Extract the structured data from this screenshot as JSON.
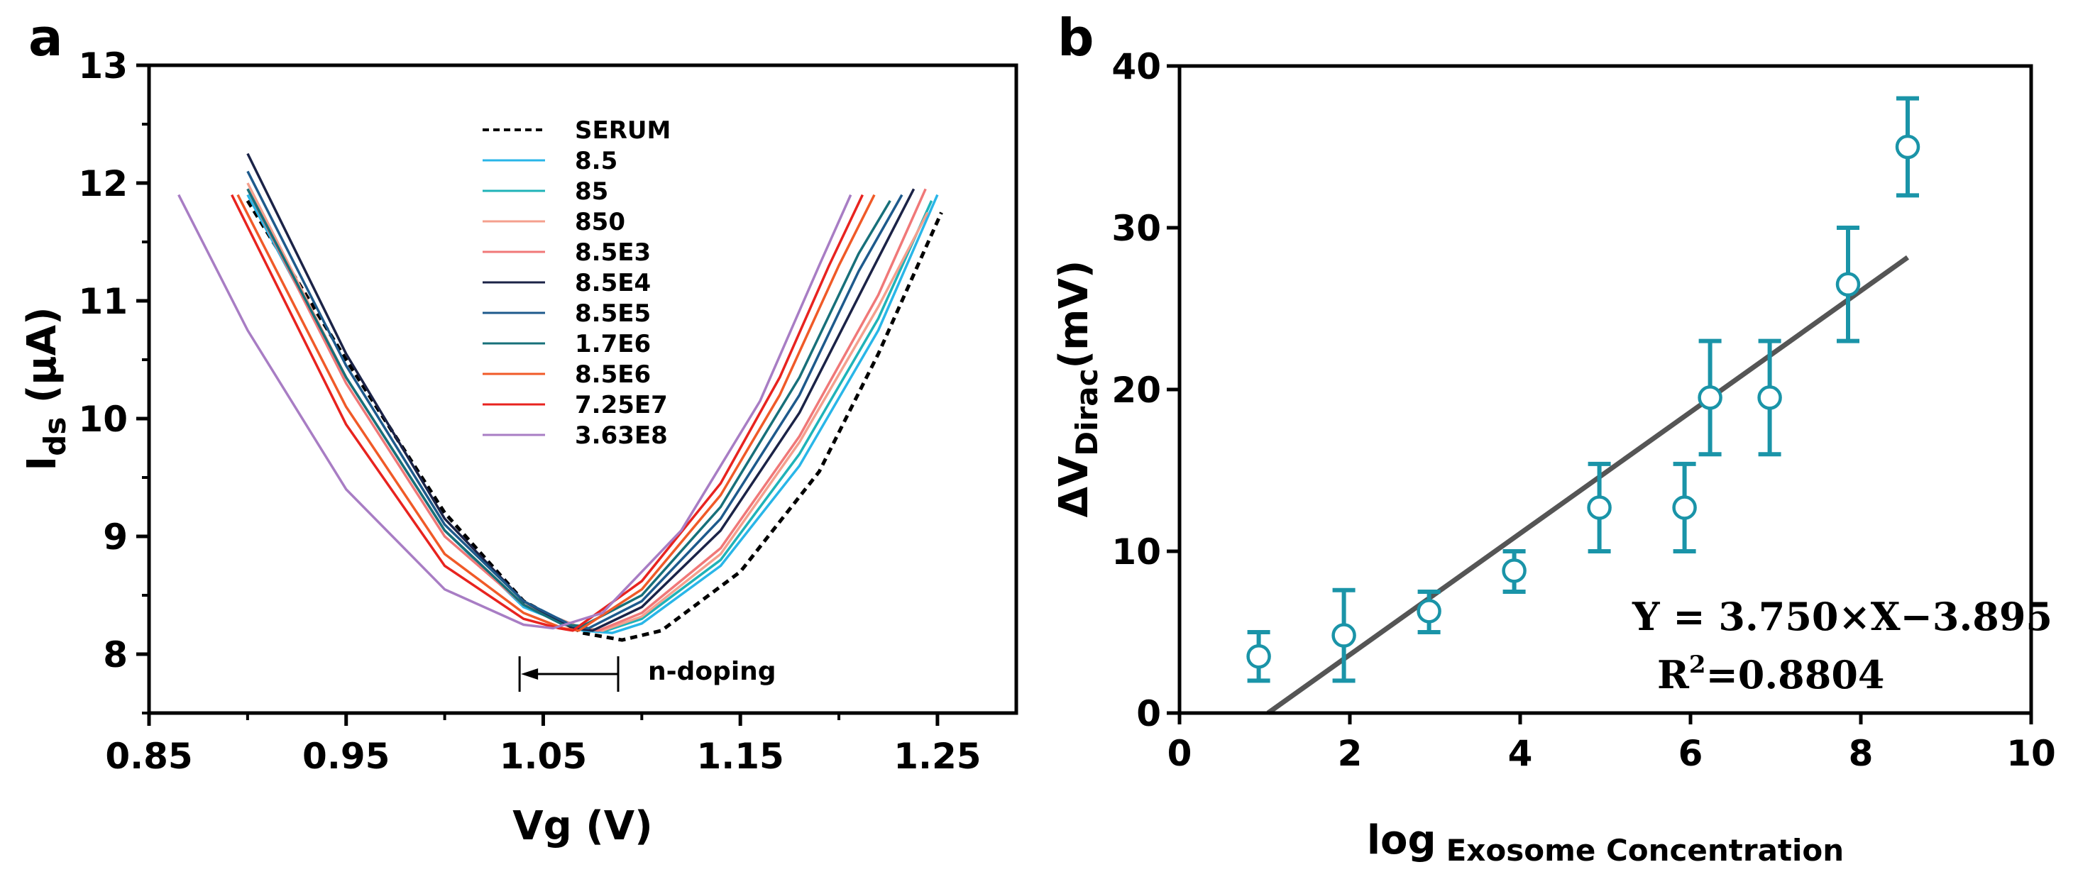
{
  "chart_data": [
    {
      "id": "a",
      "type": "line",
      "panel_label": "a",
      "xlabel": "Vg (V)",
      "ylabel_main": "I",
      "ylabel_sub": "ds",
      "ylabel_unit": " (μA)",
      "xlim": [
        0.85,
        1.29
      ],
      "ylim": [
        7.5,
        13
      ],
      "xticks": [
        "0.85",
        "0.95",
        "1.05",
        "1.15",
        "1.25"
      ],
      "yticks": [
        "8",
        "9",
        "10",
        "11",
        "12",
        "13"
      ],
      "legend_position": "top-center",
      "annotation": "n-doping",
      "annotation_range": [
        1.038,
        1.088
      ],
      "series": [
        {
          "name": "SERUM",
          "color": "#000000",
          "dashed": true,
          "points": [
            [
              0.9,
              11.85
            ],
            [
              0.95,
              10.5
            ],
            [
              1.0,
              9.2
            ],
            [
              1.04,
              8.45
            ],
            [
              1.07,
              8.18
            ],
            [
              1.09,
              8.12
            ],
            [
              1.11,
              8.2
            ],
            [
              1.15,
              8.7
            ],
            [
              1.19,
              9.55
            ],
            [
              1.22,
              10.55
            ],
            [
              1.252,
              11.75
            ]
          ]
        },
        {
          "name": "8.5",
          "color": "#29B6E8",
          "dashed": false,
          "points": [
            [
              0.9,
              11.9
            ],
            [
              0.95,
              10.35
            ],
            [
              1.0,
              9.05
            ],
            [
              1.04,
              8.4
            ],
            [
              1.07,
              8.2
            ],
            [
              1.085,
              8.18
            ],
            [
              1.1,
              8.26
            ],
            [
              1.14,
              8.75
            ],
            [
              1.18,
              9.6
            ],
            [
              1.22,
              10.75
            ],
            [
              1.25,
              11.9
            ]
          ]
        },
        {
          "name": "85",
          "color": "#1FB3B8",
          "dashed": false,
          "points": [
            [
              0.9,
              11.95
            ],
            [
              0.95,
              10.35
            ],
            [
              1.0,
              9.05
            ],
            [
              1.04,
              8.42
            ],
            [
              1.07,
              8.22
            ],
            [
              1.082,
              8.2
            ],
            [
              1.1,
              8.3
            ],
            [
              1.14,
              8.8
            ],
            [
              1.18,
              9.7
            ],
            [
              1.22,
              10.85
            ],
            [
              1.247,
              11.85
            ]
          ]
        },
        {
          "name": "850",
          "color": "#F4A08E",
          "dashed": false,
          "points": [
            [
              0.9,
              12.0
            ],
            [
              0.95,
              10.35
            ],
            [
              1.0,
              9.05
            ],
            [
              1.04,
              8.42
            ],
            [
              1.07,
              8.22
            ],
            [
              1.08,
              8.2
            ],
            [
              1.1,
              8.32
            ],
            [
              1.14,
              8.85
            ],
            [
              1.18,
              9.8
            ],
            [
              1.22,
              10.95
            ],
            [
              1.245,
              11.75
            ]
          ]
        },
        {
          "name": "8.5E3",
          "color": "#F07878",
          "dashed": false,
          "points": [
            [
              0.9,
              11.95
            ],
            [
              0.95,
              10.3
            ],
            [
              1.0,
              9.0
            ],
            [
              1.04,
              8.42
            ],
            [
              1.065,
              8.22
            ],
            [
              1.078,
              8.2
            ],
            [
              1.1,
              8.35
            ],
            [
              1.14,
              8.9
            ],
            [
              1.18,
              9.85
            ],
            [
              1.22,
              11.05
            ],
            [
              1.244,
              11.95
            ]
          ]
        },
        {
          "name": "8.5E4",
          "color": "#1B2347",
          "dashed": false,
          "points": [
            [
              0.9,
              12.25
            ],
            [
              0.95,
              10.55
            ],
            [
              1.0,
              9.15
            ],
            [
              1.04,
              8.45
            ],
            [
              1.065,
              8.22
            ],
            [
              1.075,
              8.2
            ],
            [
              1.1,
              8.4
            ],
            [
              1.14,
              9.05
            ],
            [
              1.18,
              10.05
            ],
            [
              1.215,
              11.2
            ],
            [
              1.238,
              11.95
            ]
          ]
        },
        {
          "name": "8.5E5",
          "color": "#1E5A8C",
          "dashed": false,
          "points": [
            [
              0.9,
              12.1
            ],
            [
              0.95,
              10.45
            ],
            [
              1.0,
              9.1
            ],
            [
              1.04,
              8.45
            ],
            [
              1.065,
              8.24
            ],
            [
              1.073,
              8.22
            ],
            [
              1.1,
              8.45
            ],
            [
              1.14,
              9.15
            ],
            [
              1.18,
              10.2
            ],
            [
              1.21,
              11.25
            ],
            [
              1.232,
              11.9
            ]
          ]
        },
        {
          "name": "1.7E6",
          "color": "#17707A",
          "dashed": false,
          "points": [
            [
              0.9,
              11.95
            ],
            [
              0.95,
              10.35
            ],
            [
              1.0,
              9.05
            ],
            [
              1.04,
              8.42
            ],
            [
              1.06,
              8.25
            ],
            [
              1.07,
              8.24
            ],
            [
              1.1,
              8.5
            ],
            [
              1.14,
              9.25
            ],
            [
              1.18,
              10.35
            ],
            [
              1.21,
              11.4
            ],
            [
              1.226,
              11.85
            ]
          ]
        },
        {
          "name": "8.5E6",
          "color": "#F05A28",
          "dashed": false,
          "points": [
            [
              0.895,
              11.9
            ],
            [
              0.95,
              10.1
            ],
            [
              1.0,
              8.85
            ],
            [
              1.04,
              8.35
            ],
            [
              1.06,
              8.22
            ],
            [
              1.068,
              8.2
            ],
            [
              1.1,
              8.55
            ],
            [
              1.14,
              9.35
            ],
            [
              1.17,
              10.2
            ],
            [
              1.2,
              11.3
            ],
            [
              1.218,
              11.9
            ]
          ]
        },
        {
          "name": "7.25E7",
          "color": "#E8231F",
          "dashed": false,
          "points": [
            [
              0.892,
              11.9
            ],
            [
              0.95,
              9.95
            ],
            [
              1.0,
              8.75
            ],
            [
              1.04,
              8.3
            ],
            [
              1.058,
              8.22
            ],
            [
              1.065,
              8.2
            ],
            [
              1.1,
              8.62
            ],
            [
              1.14,
              9.45
            ],
            [
              1.17,
              10.35
            ],
            [
              1.195,
              11.3
            ],
            [
              1.212,
              11.9
            ]
          ]
        },
        {
          "name": "3.63E8",
          "color": "#A87DC4",
          "dashed": false,
          "points": [
            [
              0.865,
              11.9
            ],
            [
              0.9,
              10.75
            ],
            [
              0.95,
              9.4
            ],
            [
              1.0,
              8.55
            ],
            [
              1.04,
              8.25
            ],
            [
              1.055,
              8.22
            ],
            [
              1.08,
              8.35
            ],
            [
              1.12,
              9.05
            ],
            [
              1.16,
              10.15
            ],
            [
              1.19,
              11.3
            ],
            [
              1.206,
              11.9
            ]
          ]
        }
      ]
    },
    {
      "id": "b",
      "type": "scatter",
      "panel_label": "b",
      "xlabel_main": "log",
      "xlabel_sub": "Exosome Concentration",
      "ylabel_main": "ΔV",
      "ylabel_sub": "Dirac",
      "ylabel_unit": "(mV)",
      "xlim": [
        0,
        10
      ],
      "ylim": [
        0,
        40
      ],
      "xticks": [
        "0",
        "2",
        "4",
        "6",
        "8",
        "10"
      ],
      "yticks": [
        "0",
        "10",
        "20",
        "30",
        "40"
      ],
      "marker_color": "#1A94A8",
      "fit_color": "#555555",
      "fit_slope": 3.75,
      "fit_intercept": -3.895,
      "fit_x_range": [
        1.04,
        8.55
      ],
      "equation": "Y = 3.750×X−3.895",
      "r2_prefix": "R",
      "r2_sup": "2",
      "r2_value": "=0.8804",
      "points": [
        {
          "x": 0.93,
          "y": 3.5,
          "lo": 2.0,
          "hi": 5.0
        },
        {
          "x": 1.93,
          "y": 4.8,
          "lo": 2.0,
          "hi": 7.6
        },
        {
          "x": 2.93,
          "y": 6.3,
          "lo": 5.0,
          "hi": 7.5
        },
        {
          "x": 3.93,
          "y": 8.8,
          "lo": 7.5,
          "hi": 10.0
        },
        {
          "x": 4.93,
          "y": 12.7,
          "lo": 10.0,
          "hi": 15.4
        },
        {
          "x": 5.93,
          "y": 12.7,
          "lo": 10.0,
          "hi": 15.4
        },
        {
          "x": 6.23,
          "y": 19.5,
          "lo": 16.0,
          "hi": 23.0
        },
        {
          "x": 6.93,
          "y": 19.5,
          "lo": 16.0,
          "hi": 23.0
        },
        {
          "x": 7.85,
          "y": 26.5,
          "lo": 23.0,
          "hi": 30.0
        },
        {
          "x": 8.55,
          "y": 35.0,
          "lo": 32.0,
          "hi": 38.0
        }
      ]
    }
  ]
}
